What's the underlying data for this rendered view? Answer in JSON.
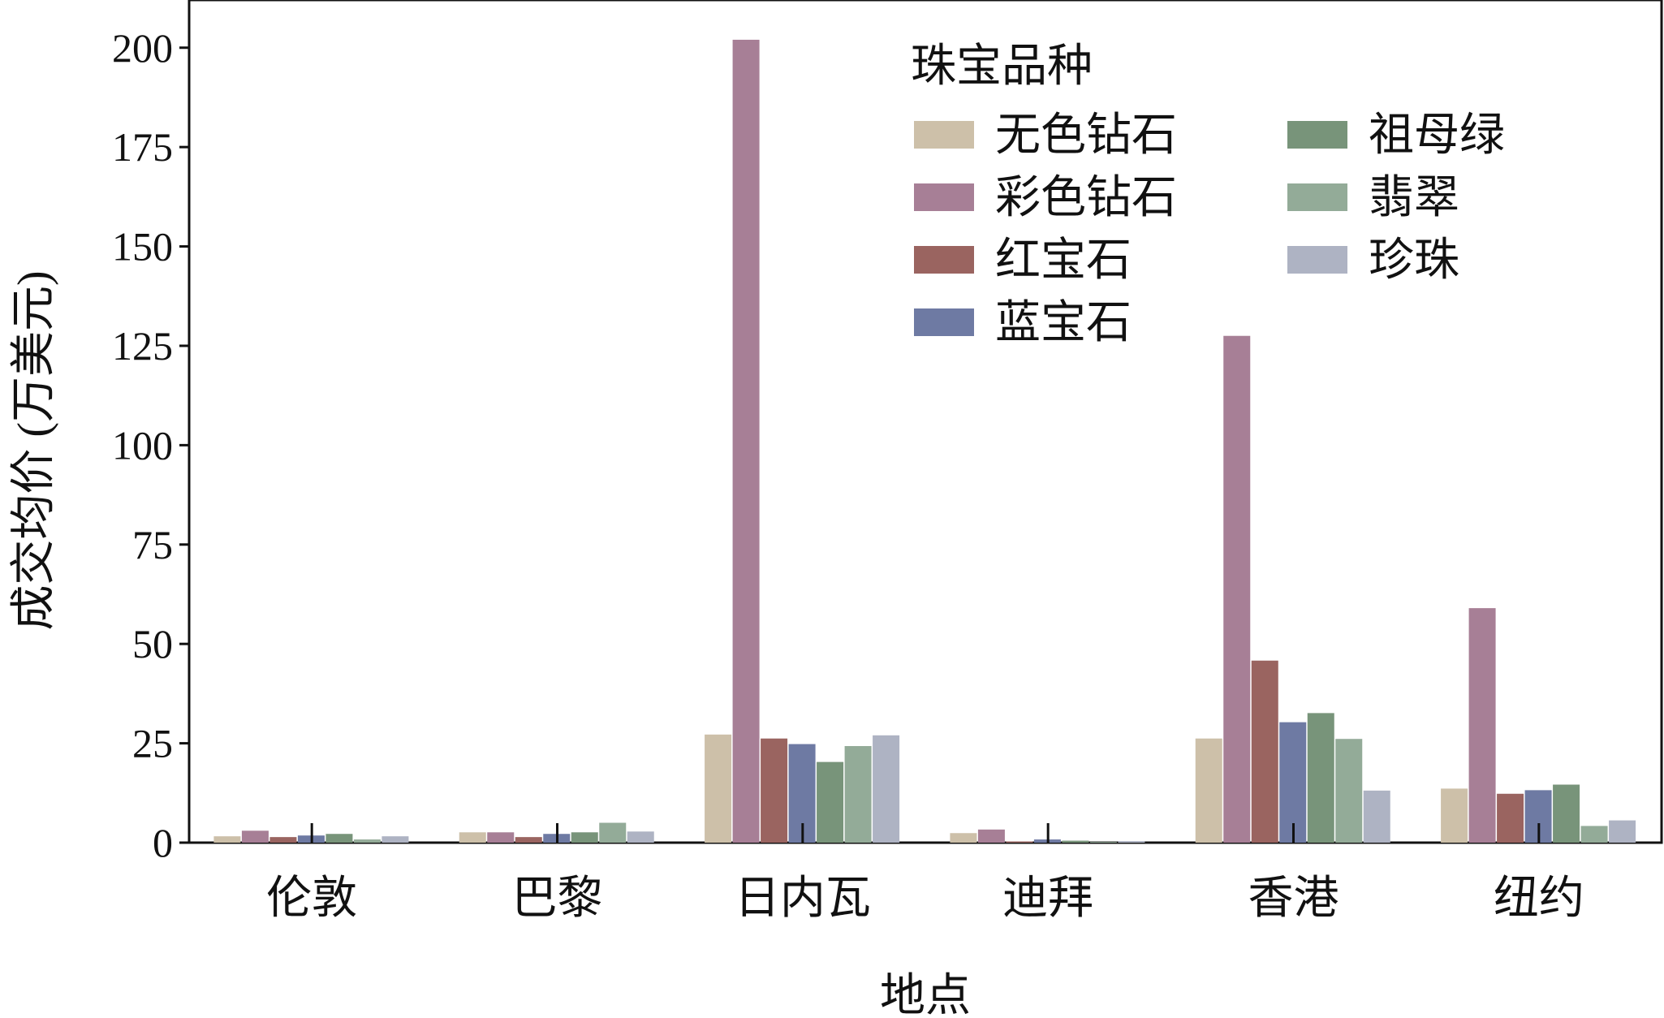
{
  "chart_data": {
    "type": "bar",
    "title": "",
    "xlabel": "地点",
    "ylabel": "成交均价 (万美元)",
    "ylim": [
      0,
      212
    ],
    "yticks": [
      0,
      25,
      50,
      75,
      100,
      125,
      150,
      175,
      200
    ],
    "categories": [
      "伦敦",
      "巴黎",
      "日内瓦",
      "迪拜",
      "香港",
      "纽约"
    ],
    "legend": {
      "title": "珠宝品种",
      "position": "top-right",
      "columns": 2
    },
    "series": [
      {
        "name": "无色钻石",
        "color": "#cdc0a9",
        "values": [
          1.6,
          2.6,
          27.2,
          2.4,
          26.2,
          13.6
        ]
      },
      {
        "name": "彩色钻石",
        "color": "#a77f96",
        "values": [
          3.0,
          2.6,
          202.0,
          3.3,
          127.5,
          59.0
        ]
      },
      {
        "name": "红宝石",
        "color": "#9a6460",
        "values": [
          1.4,
          1.4,
          26.2,
          0.3,
          45.8,
          12.3
        ]
      },
      {
        "name": "蓝宝石",
        "color": "#6e7aa3",
        "values": [
          1.8,
          2.2,
          24.8,
          0.8,
          30.3,
          13.2
        ]
      },
      {
        "name": "祖母绿",
        "color": "#78947a",
        "values": [
          2.2,
          2.6,
          20.3,
          0.5,
          32.6,
          14.6
        ]
      },
      {
        "name": "翡翠",
        "color": "#93ab98",
        "values": [
          0.8,
          5.0,
          24.3,
          0.2,
          26.1,
          4.2
        ]
      },
      {
        "name": "珍珠",
        "color": "#aeb3c3",
        "values": [
          1.6,
          2.8,
          27.0,
          0.4,
          13.1,
          5.6
        ]
      }
    ]
  }
}
